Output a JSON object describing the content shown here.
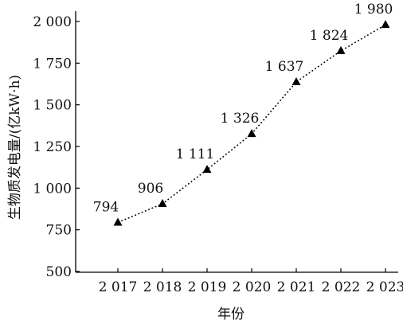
{
  "chart_data": {
    "type": "line",
    "title": "",
    "xlabel": "年份",
    "ylabel": "生物质发电量/(亿kW·h)",
    "x": [
      "2 017",
      "2 018",
      "2 019",
      "2 020",
      "2 021",
      "2 022",
      "2 023"
    ],
    "values": [
      794,
      906,
      1111,
      1326,
      1637,
      1824,
      1980
    ],
    "data_labels": [
      "794",
      "906",
      "1 111",
      "1 326",
      "1 637",
      "1 824",
      "1 980"
    ],
    "yticks": [
      500,
      750,
      1000,
      1250,
      1500,
      1750,
      2000
    ],
    "ytick_labels": [
      "500",
      "750",
      "1 000",
      "1 250",
      "1 500",
      "1 750",
      "2 000"
    ],
    "ylim": [
      500,
      2000
    ],
    "grid": false,
    "legend": "none",
    "marker": "triangle",
    "line_style": "dotted",
    "color": "#000000"
  }
}
